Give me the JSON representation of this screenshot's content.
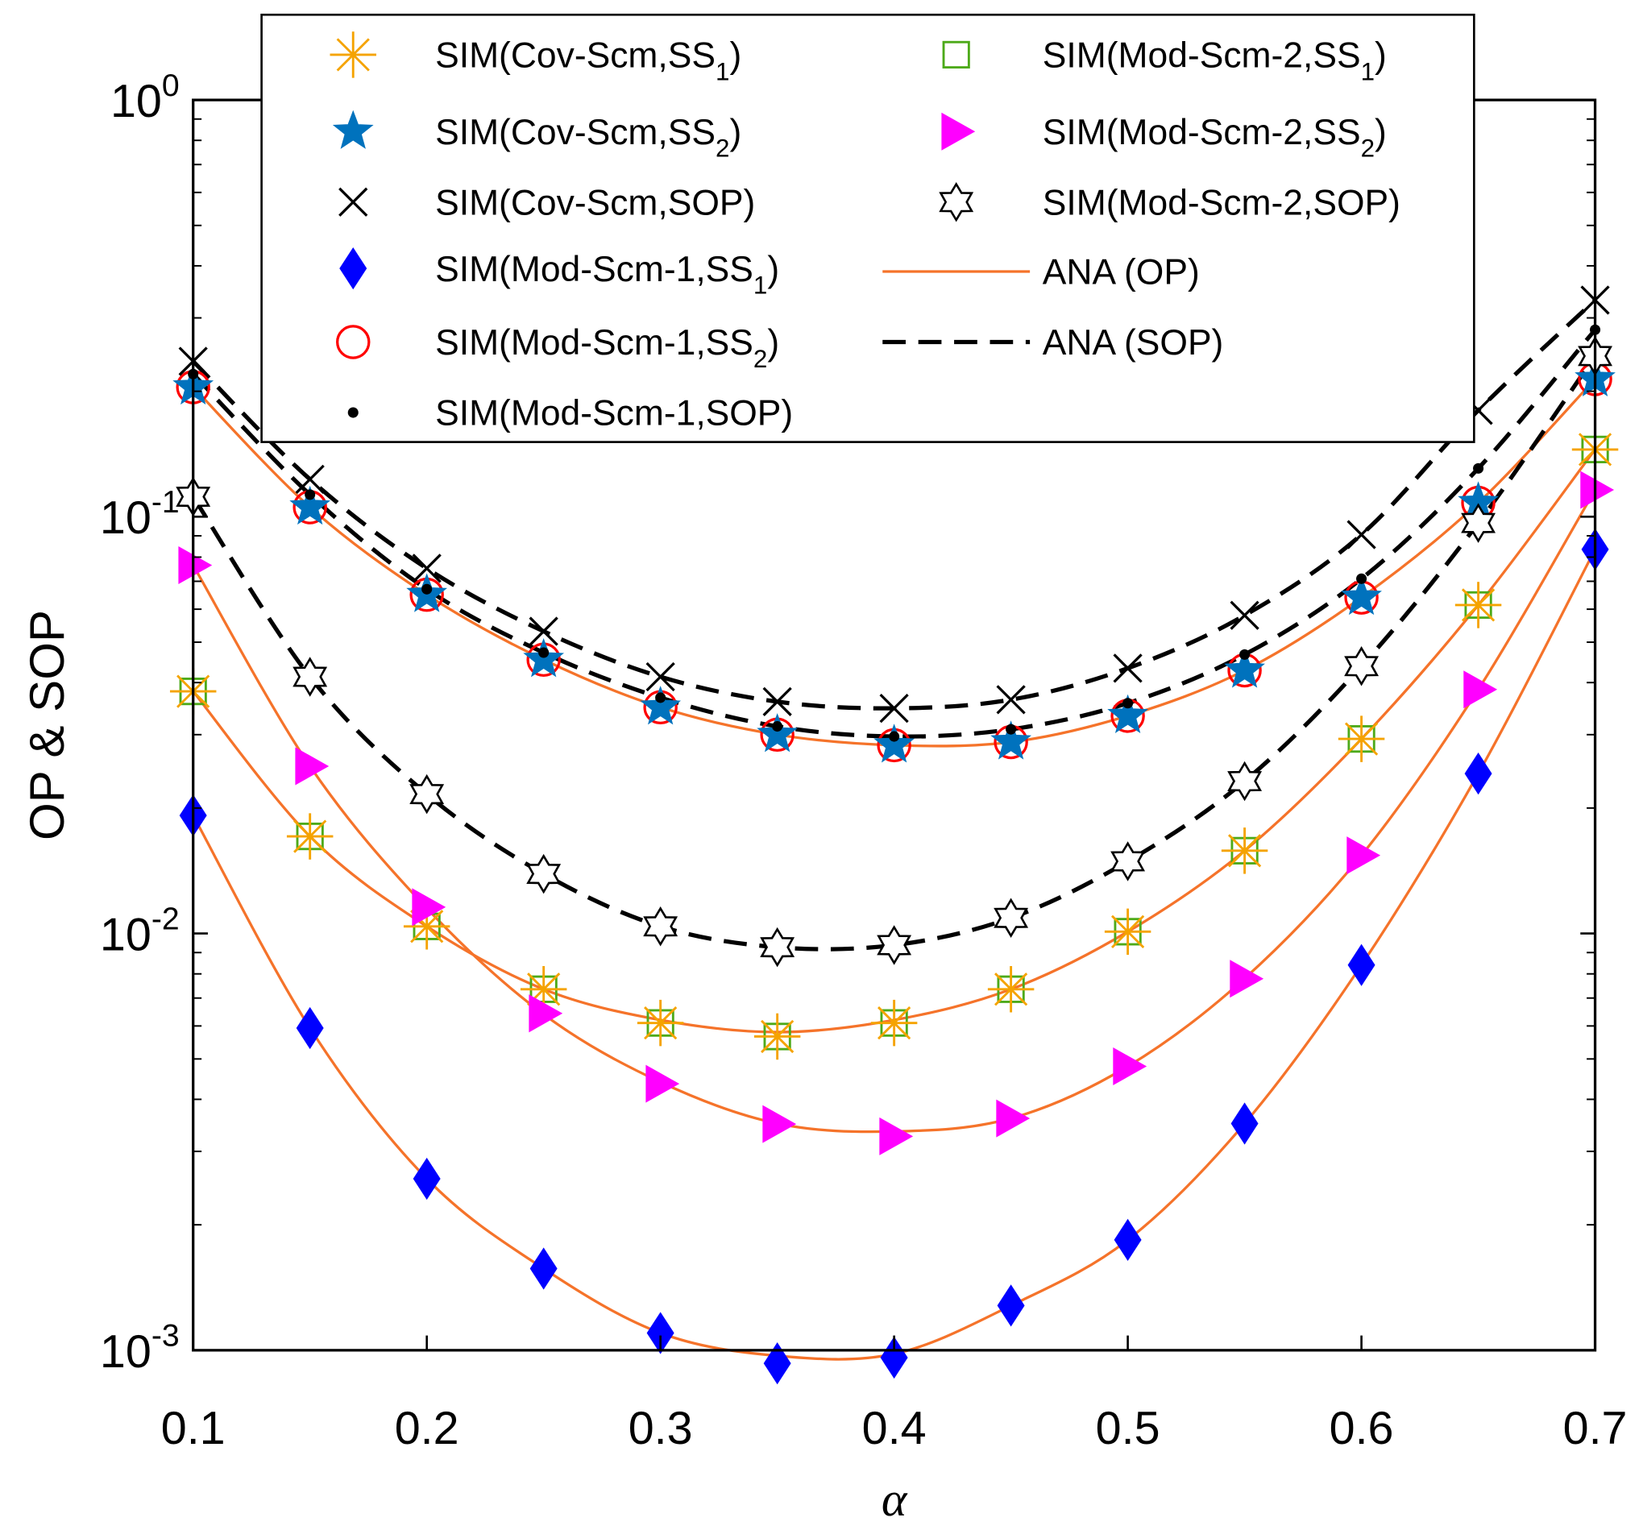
{
  "chart_data": {
    "type": "line",
    "title": "",
    "xlabel": "α",
    "ylabel": "OP & SOP",
    "xlim": [
      0.1,
      0.7
    ],
    "ylim": [
      0.001,
      1
    ],
    "yscale": "log",
    "grid": false,
    "legend_placement": "top",
    "x_ticks": [
      "0.1",
      "0.2",
      "0.3",
      "0.4",
      "0.5",
      "0.6",
      "0.7"
    ],
    "y_ticks": [
      {
        "base": "10",
        "exp": "0",
        "value": 1
      },
      {
        "base": "10",
        "exp": "-1",
        "value": 0.1
      },
      {
        "base": "10",
        "exp": "-2",
        "value": 0.01
      },
      {
        "base": "10",
        "exp": "-3",
        "value": 0.001
      }
    ],
    "x": [
      0.1,
      0.15,
      0.2,
      0.25,
      0.3,
      0.35,
      0.4,
      0.45,
      0.5,
      0.55,
      0.6,
      0.65,
      0.7
    ],
    "series": [
      {
        "name": "SIM(Cov-Scm,SS1)",
        "label": {
          "pre": "SIM(Cov-Scm,SS",
          "sub": "1",
          "post": ")"
        },
        "marker": "asterisk",
        "color": "#F5A300",
        "values": [
          0.0381,
          0.0171,
          0.0104,
          0.00735,
          0.0061,
          0.00566,
          0.0061,
          0.00735,
          0.0101,
          0.0158,
          0.0293,
          0.0614,
          0.145
        ]
      },
      {
        "name": "SIM(Cov-Scm,SS2)",
        "label": {
          "pre": "SIM(Cov-Scm,SS",
          "sub": "2",
          "post": ")"
        },
        "marker": "pentagram",
        "color": "#0072BD",
        "values": [
          0.2046,
          0.1054,
          0.065,
          0.0454,
          0.0349,
          0.03,
          0.0283,
          0.0288,
          0.0333,
          0.0428,
          0.064,
          0.108,
          0.214
        ]
      },
      {
        "name": "SIM(Cov-Scm,SOP)",
        "label": {
          "pre": "SIM(Cov-Scm,SOP)",
          "sub": "",
          "post": ""
        },
        "marker": "x",
        "color": "#000000",
        "values": [
          0.236,
          0.123,
          0.0752,
          0.0531,
          0.0413,
          0.036,
          0.0347,
          0.0364,
          0.0433,
          0.058,
          0.0906,
          0.18,
          0.331
        ]
      },
      {
        "name": "SIM(Mod-Scm-1,SS1)",
        "label": {
          "pre": "SIM(Mod-Scm-1,SS",
          "sub": "1",
          "post": ")"
        },
        "marker": "diamond",
        "color": "#0000FF",
        "values": [
          0.0192,
          0.00593,
          0.00258,
          0.00157,
          0.0011,
          0.00093,
          0.00096,
          0.00128,
          0.00184,
          0.0035,
          0.0084,
          0.0242,
          0.0835
        ]
      },
      {
        "name": "SIM(Mod-Scm-1,SS2)",
        "label": {
          "pre": "SIM(Mod-Scm-1,SS",
          "sub": "2",
          "post": ")"
        },
        "marker": "circle",
        "color": "#FF0000",
        "values": [
          0.2046,
          0.1054,
          0.065,
          0.0454,
          0.0349,
          0.03,
          0.0283,
          0.0288,
          0.0333,
          0.0428,
          0.064,
          0.108,
          0.214
        ]
      },
      {
        "name": "SIM(Mod-Scm-1,SOP)",
        "label": {
          "pre": "SIM(Mod-Scm-1,SOP)",
          "sub": "",
          "post": ""
        },
        "marker": "dot",
        "color": "#000000",
        "values": [
          0.22,
          0.113,
          0.067,
          0.0472,
          0.0368,
          0.0314,
          0.0297,
          0.0309,
          0.0357,
          0.0467,
          0.071,
          0.1306,
          0.281
        ]
      },
      {
        "name": "SIM(Mod-Scm-2,SS1)",
        "label": {
          "pre": "SIM(Mod-Scm-2,SS",
          "sub": "1",
          "post": ")"
        },
        "marker": "square",
        "color": "#4DAA1A",
        "values": [
          0.0381,
          0.0171,
          0.0104,
          0.00735,
          0.0061,
          0.00566,
          0.0061,
          0.00735,
          0.0101,
          0.0158,
          0.0293,
          0.0614,
          0.145
        ]
      },
      {
        "name": "SIM(Mod-Scm-2,SS2)",
        "label": {
          "pre": "SIM(Mod-Scm-2,SS",
          "sub": "2",
          "post": ")"
        },
        "marker": "triangle-right",
        "color": "#FF00FF",
        "values": [
          0.0765,
          0.0252,
          0.01157,
          0.00643,
          0.00436,
          0.00349,
          0.00326,
          0.0036,
          0.0048,
          0.00779,
          0.0154,
          0.0385,
          0.116
        ]
      },
      {
        "name": "SIM(Mod-Scm-2,SOP)",
        "label": {
          "pre": "SIM(Mod-Scm-2,SOP)",
          "sub": "",
          "post": ""
        },
        "marker": "hexagram",
        "color": "#000000",
        "values": [
          0.1117,
          0.0413,
          0.0216,
          0.0139,
          0.0104,
          0.00927,
          0.00938,
          0.0109,
          0.0149,
          0.0232,
          0.0438,
          0.0966,
          0.243
        ]
      }
    ],
    "analytic": [
      {
        "name": "ANA (OP)",
        "style": "solid",
        "color": "#F5732A",
        "curves": [
          [
            0.0192,
            0.00593,
            0.00258,
            0.00157,
            0.0011,
            0.00097,
            0.00098,
            0.00128,
            0.00184,
            0.0035,
            0.0084,
            0.0242,
            0.0835
          ],
          [
            0.0765,
            0.0252,
            0.0115,
            0.0064,
            0.0044,
            0.0035,
            0.00335,
            0.0036,
            0.0048,
            0.0078,
            0.0154,
            0.0385,
            0.116
          ],
          [
            0.0381,
            0.0171,
            0.0104,
            0.00735,
            0.0062,
            0.0058,
            0.0062,
            0.00735,
            0.0101,
            0.0158,
            0.0293,
            0.0614,
            0.145
          ],
          [
            0.2046,
            0.1054,
            0.065,
            0.0454,
            0.0349,
            0.03,
            0.0283,
            0.0288,
            0.0333,
            0.0428,
            0.064,
            0.108,
            0.214
          ]
        ]
      },
      {
        "name": "ANA (SOP)",
        "style": "dashed",
        "color": "#000000",
        "curves": [
          [
            0.236,
            0.123,
            0.0752,
            0.0531,
            0.0413,
            0.036,
            0.0347,
            0.0364,
            0.0433,
            0.058,
            0.0906,
            0.18,
            0.331
          ],
          [
            0.22,
            0.113,
            0.067,
            0.0472,
            0.0368,
            0.0314,
            0.0297,
            0.0309,
            0.0357,
            0.0467,
            0.071,
            0.1306,
            0.281
          ],
          [
            0.1117,
            0.0413,
            0.0216,
            0.0139,
            0.0104,
            0.00927,
            0.00938,
            0.0109,
            0.0149,
            0.0232,
            0.0438,
            0.0966,
            0.243
          ]
        ]
      }
    ]
  }
}
